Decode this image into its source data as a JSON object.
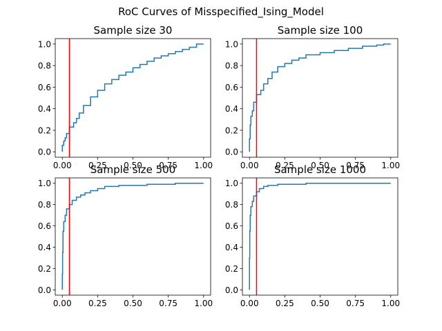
{
  "suptitle": "RoC Curves of Misspecified_Ising_Model",
  "colors": {
    "curve": "#1f77b4",
    "threshold": "#ff0000",
    "axes": "#000000"
  },
  "chart_data": [
    {
      "type": "line",
      "title": "Sample size 30",
      "xlabel": "",
      "ylabel": "",
      "xlim": [
        0,
        1
      ],
      "ylim": [
        0,
        1
      ],
      "xticks": [
        "0.00",
        "0.25",
        "0.50",
        "0.75",
        "1.00"
      ],
      "yticks": [
        "0.0",
        "0.2",
        "0.4",
        "0.6",
        "0.8",
        "1.0"
      ],
      "grid": false,
      "threshold_x": 0.05,
      "x": [
        0,
        0.01,
        0.02,
        0.03,
        0.05,
        0.08,
        0.1,
        0.12,
        0.15,
        0.2,
        0.25,
        0.3,
        0.35,
        0.4,
        0.45,
        0.5,
        0.55,
        0.6,
        0.65,
        0.7,
        0.75,
        0.8,
        0.85,
        0.9,
        0.95,
        1.0
      ],
      "y": [
        0,
        0.06,
        0.1,
        0.13,
        0.17,
        0.23,
        0.27,
        0.31,
        0.36,
        0.43,
        0.51,
        0.57,
        0.63,
        0.67,
        0.71,
        0.74,
        0.78,
        0.81,
        0.84,
        0.87,
        0.89,
        0.91,
        0.93,
        0.95,
        0.97,
        1.0
      ]
    },
    {
      "type": "line",
      "title": "Sample size 100",
      "xlabel": "",
      "ylabel": "",
      "xlim": [
        0,
        1
      ],
      "ylim": [
        0,
        1
      ],
      "xticks": [
        "0.00",
        "0.25",
        "0.50",
        "0.75",
        "1.00"
      ],
      "yticks": [
        "0.0",
        "0.2",
        "0.4",
        "0.6",
        "0.8",
        "1.0"
      ],
      "grid": false,
      "threshold_x": 0.05,
      "x": [
        0,
        0.005,
        0.01,
        0.02,
        0.03,
        0.05,
        0.08,
        0.1,
        0.13,
        0.16,
        0.2,
        0.25,
        0.3,
        0.35,
        0.4,
        0.5,
        0.6,
        0.7,
        0.8,
        0.9,
        0.95,
        1.0
      ],
      "y": [
        0,
        0.12,
        0.25,
        0.33,
        0.38,
        0.46,
        0.53,
        0.57,
        0.63,
        0.68,
        0.74,
        0.79,
        0.82,
        0.85,
        0.87,
        0.9,
        0.92,
        0.94,
        0.96,
        0.98,
        0.99,
        1.0
      ]
    },
    {
      "type": "line",
      "title": "Sample size 500",
      "xlabel": "",
      "ylabel": "",
      "xlim": [
        0,
        1
      ],
      "ylim": [
        0,
        1
      ],
      "xticks": [
        "0.00",
        "0.25",
        "0.50",
        "0.75",
        "1.00"
      ],
      "yticks": [
        "0.0",
        "0.2",
        "0.4",
        "0.6",
        "0.8",
        "1.0"
      ],
      "grid": false,
      "threshold_x": 0.05,
      "x": [
        0,
        0.002,
        0.005,
        0.01,
        0.02,
        0.03,
        0.05,
        0.07,
        0.1,
        0.13,
        0.16,
        0.2,
        0.25,
        0.3,
        0.4,
        0.5,
        0.6,
        0.7,
        0.8,
        0.9,
        1.0
      ],
      "y": [
        0,
        0.15,
        0.35,
        0.55,
        0.64,
        0.7,
        0.76,
        0.8,
        0.84,
        0.87,
        0.89,
        0.91,
        0.93,
        0.95,
        0.97,
        0.98,
        0.98,
        0.99,
        0.99,
        1.0,
        1.0
      ]
    },
    {
      "type": "line",
      "title": "Sample size 1000",
      "xlabel": "",
      "ylabel": "",
      "xlim": [
        0,
        1
      ],
      "ylim": [
        0,
        1
      ],
      "xticks": [
        "0.00",
        "0.25",
        "0.50",
        "0.75",
        "1.00"
      ],
      "yticks": [
        "0.0",
        "0.2",
        "0.4",
        "0.6",
        "0.8",
        "1.0"
      ],
      "grid": false,
      "threshold_x": 0.05,
      "x": [
        0,
        0.002,
        0.005,
        0.01,
        0.02,
        0.03,
        0.05,
        0.07,
        0.1,
        0.13,
        0.2,
        0.3,
        0.4,
        0.5,
        0.6,
        0.8,
        1.0
      ],
      "y": [
        0,
        0.3,
        0.55,
        0.7,
        0.78,
        0.83,
        0.88,
        0.92,
        0.95,
        0.97,
        0.98,
        0.99,
        0.99,
        1.0,
        1.0,
        1.0,
        1.0
      ]
    }
  ]
}
